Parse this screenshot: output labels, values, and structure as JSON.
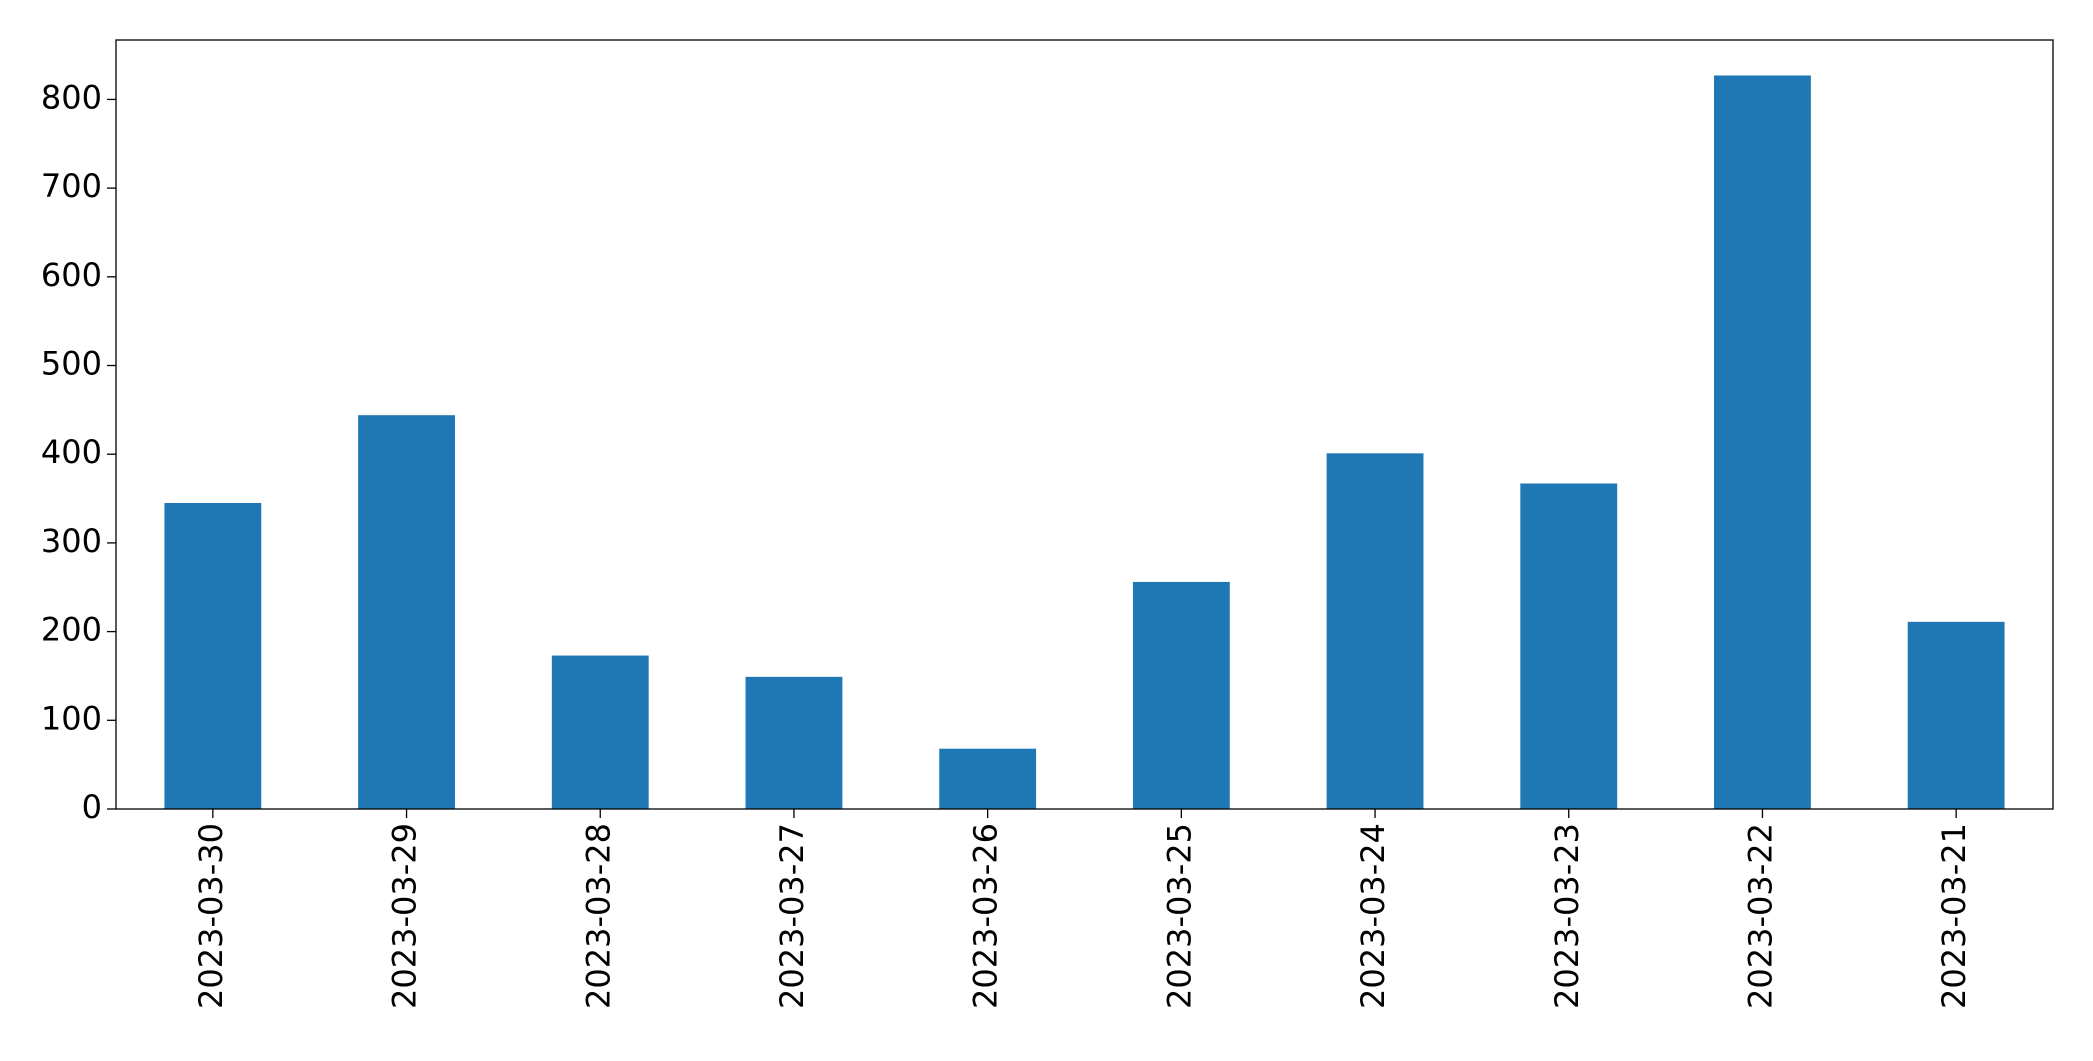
{
  "chart_data": {
    "type": "bar",
    "categories": [
      "2023-03-30",
      "2023-03-29",
      "2023-03-28",
      "2023-03-27",
      "2023-03-26",
      "2023-03-25",
      "2023-03-24",
      "2023-03-23",
      "2023-03-22",
      "2023-03-21"
    ],
    "values": [
      345,
      444,
      173,
      149,
      68,
      256,
      401,
      367,
      827,
      211
    ],
    "color": "#1f77b4",
    "ylim": [
      0,
      867
    ],
    "yticks": [
      0,
      100,
      200,
      300,
      400,
      500,
      600,
      700,
      800
    ],
    "grid": false
  }
}
